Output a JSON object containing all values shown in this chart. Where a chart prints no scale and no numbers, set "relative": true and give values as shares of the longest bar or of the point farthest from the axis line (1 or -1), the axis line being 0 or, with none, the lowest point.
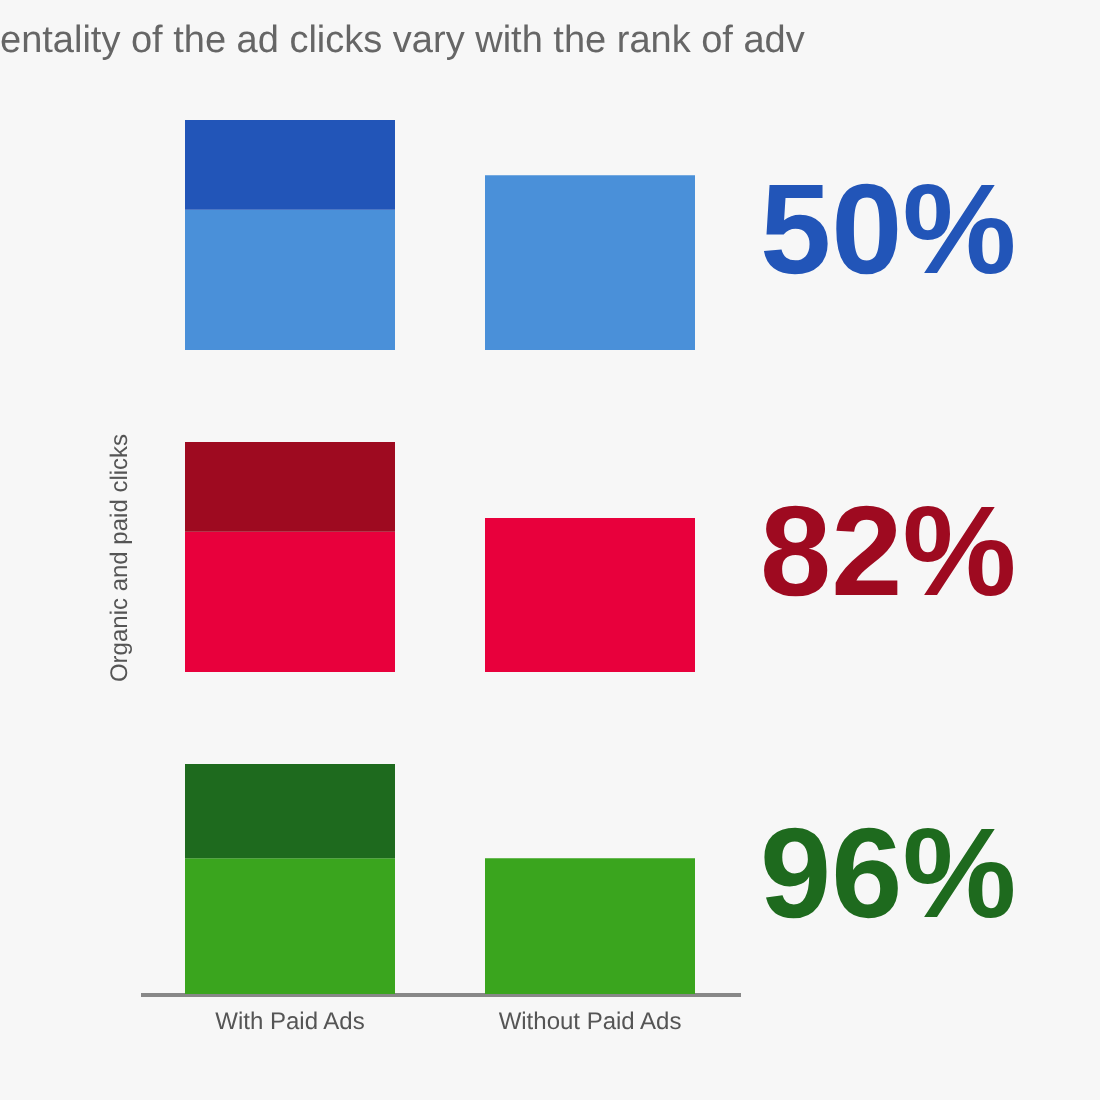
{
  "chart_data": [
    {
      "type": "bar",
      "title": "entality of the ad clicks vary with the rank of adv",
      "stacked": true,
      "relative": true,
      "tick_labels": false,
      "categories": [
        null,
        null
      ],
      "series": [
        {
          "color": "#4a90d9",
          "values": [
            0.61,
            0.76
          ]
        },
        {
          "color": "#2255b8",
          "values": [
            0.39,
            null
          ]
        }
      ],
      "annotations": [
        "50%"
      ]
    },
    {
      "type": "bar",
      "ylabel": "Organic and paid clicks",
      "stacked": true,
      "relative": true,
      "tick_labels": false,
      "categories": [
        null,
        null
      ],
      "series": [
        {
          "color": "#e8003c",
          "values": [
            0.61,
            0.67
          ]
        },
        {
          "color": "#9e0a20",
          "values": [
            0.39,
            null
          ]
        }
      ],
      "annotations": [
        "82%"
      ]
    },
    {
      "type": "bar",
      "stacked": true,
      "relative": true,
      "categories": [
        "With Paid Ads",
        "Without Paid Ads"
      ],
      "series": [
        {
          "color": "#3aa51e",
          "values": [
            0.59,
            0.59
          ]
        },
        {
          "color": "#1e6a1e",
          "values": [
            0.41,
            null
          ]
        }
      ],
      "annotations": [
        "96%"
      ]
    }
  ]
}
